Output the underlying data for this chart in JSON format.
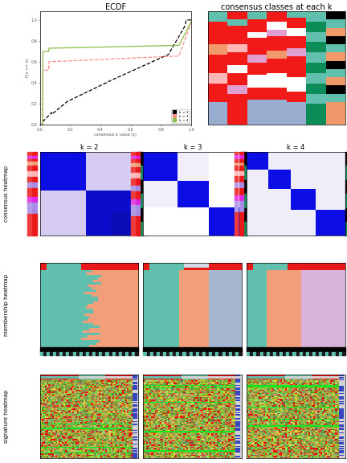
{
  "title_ecdf": "ECDF",
  "title_consensus_top": "consensus classes at each k",
  "k_labels": [
    "k = 2",
    "k = 3",
    "k = 4"
  ],
  "row_labels": [
    "consensus heatmap",
    "membership heatmap",
    "signature heatmap"
  ],
  "ecdf_xlabel": "consensus k value (x)",
  "ecdf_ylabel": "F(x <= x)",
  "legend_colors": [
    "#000000",
    "#ff8888",
    "#88bb44"
  ],
  "fig_width": 4.32,
  "fig_height": 5.76
}
